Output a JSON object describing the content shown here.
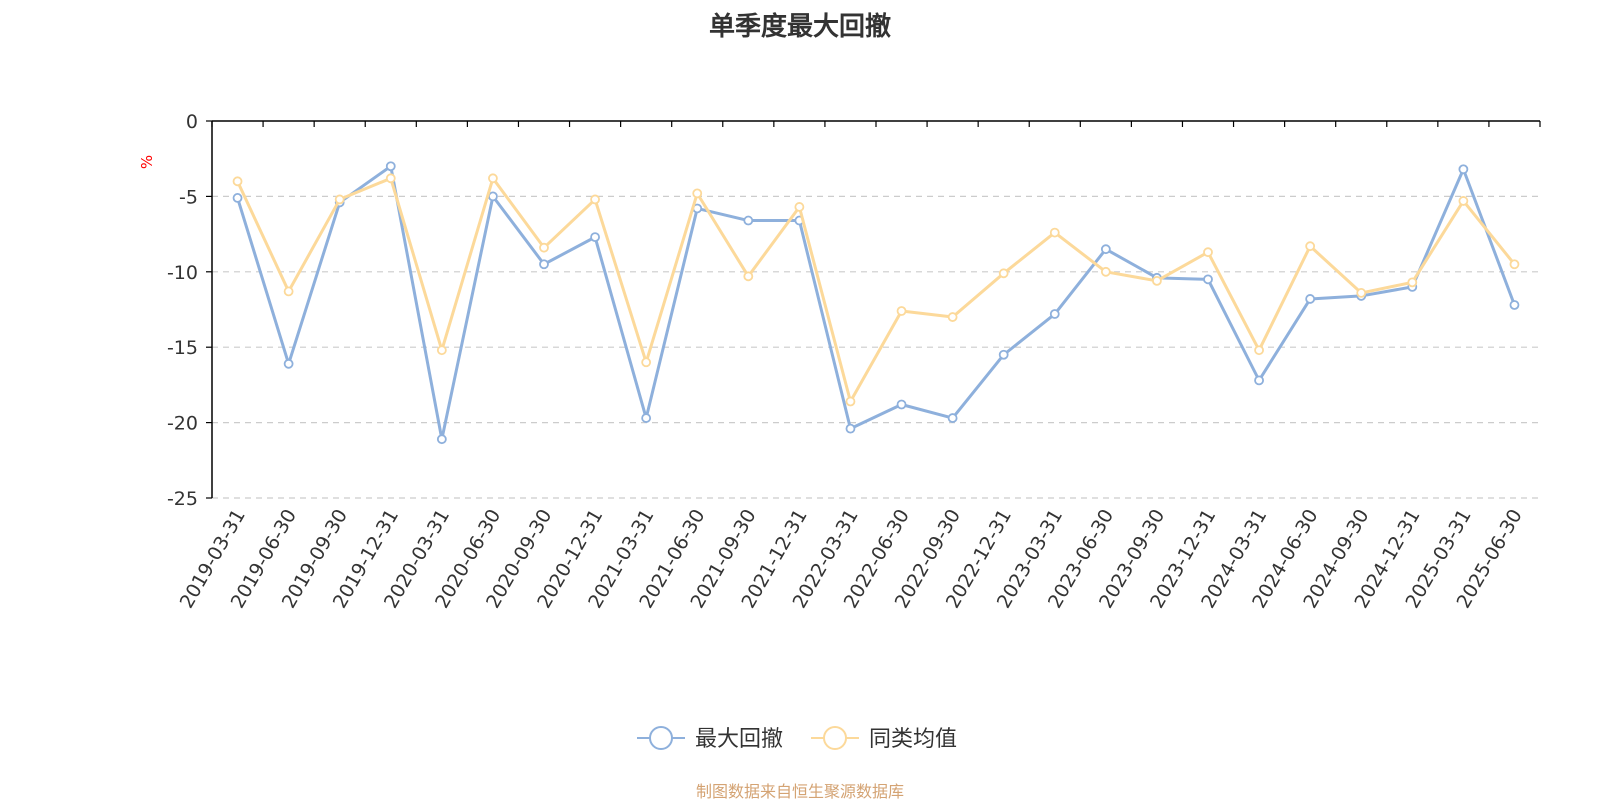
{
  "title": "单季度最大回撤",
  "source_note": "制图数据来自恒生聚源数据库",
  "colors": {
    "series_max_drawdown": "#8eb0dc",
    "series_peer_average": "#fcd99a",
    "axis": "#000000",
    "grid": "#cccccc",
    "unit": "#ff0000",
    "source_note": "#d4a373"
  },
  "chart_data": {
    "type": "line",
    "title": "单季度最大回撤",
    "ylabel": "%",
    "ylim": [
      -25,
      0
    ],
    "yticks": [
      0,
      -5,
      -10,
      -15,
      -20,
      -25
    ],
    "grid": "horizontal-dashed",
    "legend_position": "bottom-center",
    "categories": [
      "2019-03-31",
      "2019-06-30",
      "2019-09-30",
      "2019-12-31",
      "2020-03-31",
      "2020-06-30",
      "2020-09-30",
      "2020-12-31",
      "2021-03-31",
      "2021-06-30",
      "2021-09-30",
      "2021-12-31",
      "2022-03-31",
      "2022-06-30",
      "2022-09-30",
      "2022-12-31",
      "2023-03-31",
      "2023-06-30",
      "2023-09-30",
      "2023-12-31",
      "2024-03-31",
      "2024-06-30",
      "2024-09-30",
      "2024-12-31",
      "2025-03-31",
      "2025-06-30"
    ],
    "series": [
      {
        "name": "最大回撤",
        "values": [
          -5.1,
          -16.1,
          -5.4,
          -3.0,
          -21.1,
          -5.0,
          -9.5,
          -7.7,
          -19.7,
          -5.8,
          -6.6,
          -6.6,
          -20.4,
          -18.8,
          -19.7,
          -15.5,
          -12.8,
          -8.5,
          -10.4,
          -10.5,
          -17.2,
          -11.8,
          -11.6,
          -11.0,
          -3.2,
          -12.2
        ]
      },
      {
        "name": "同类均值",
        "values": [
          -4.0,
          -11.3,
          -5.2,
          -3.8,
          -15.2,
          -3.8,
          -8.4,
          -5.2,
          -16.0,
          -4.8,
          -10.3,
          -5.7,
          -18.6,
          -12.6,
          -13.0,
          -10.1,
          -7.4,
          -10.0,
          -10.6,
          -8.7,
          -15.2,
          -8.3,
          -11.4,
          -10.7,
          -5.3,
          -9.5
        ]
      }
    ]
  }
}
